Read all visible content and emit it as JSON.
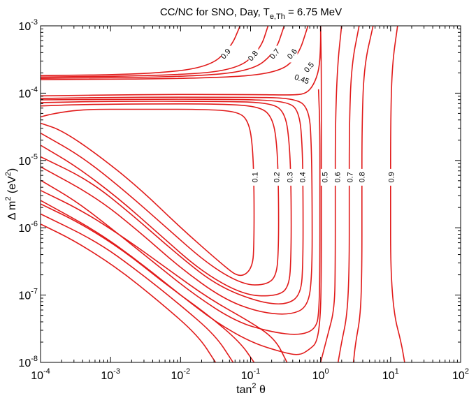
{
  "chart_data": {
    "type": "contour",
    "title": "CC/NC for SNO, Day, T_e,Th = 6.75 MeV",
    "title_parts": {
      "pre": "CC/NC for SNO, Day, T",
      "sub": "e,Th",
      "post": " = 6.75 MeV"
    },
    "xlabel": {
      "base": "tan",
      "sup": "2",
      "post": " θ"
    },
    "ylabel": {
      "pre": "Δ m",
      "sup": "2",
      "mid": " (eV",
      "sup2": "2",
      "post": ")"
    },
    "x_scale": "log",
    "y_scale": "log",
    "xlim": [
      0.0001,
      100
    ],
    "ylim": [
      1e-08,
      0.001
    ],
    "x_ticks": [
      {
        "value": -4,
        "base": "10",
        "exp": "-4"
      },
      {
        "value": -3,
        "base": "10",
        "exp": "-3"
      },
      {
        "value": -2,
        "base": "10",
        "exp": "-2"
      },
      {
        "value": -1,
        "base": "10",
        "exp": "-1"
      },
      {
        "value": 0,
        "base": "10",
        "exp": "0"
      },
      {
        "value": 1,
        "base": "10",
        "exp": "1"
      },
      {
        "value": 2,
        "base": "10",
        "exp": "2"
      }
    ],
    "y_ticks": [
      {
        "value": -8,
        "base": "10",
        "exp": "-8"
      },
      {
        "value": -7,
        "base": "10",
        "exp": "-7"
      },
      {
        "value": -6,
        "base": "10",
        "exp": "-6"
      },
      {
        "value": -5,
        "base": "10",
        "exp": "-5"
      },
      {
        "value": -4,
        "base": "10",
        "exp": "-4"
      },
      {
        "value": -3,
        "base": "10",
        "exp": "-3"
      }
    ],
    "contour_color": "#e11a1a",
    "contours": [
      {
        "label": "0.1",
        "label_at": [
          -0.93,
          -5.25
        ],
        "points": [
          [
            -3.99,
            -4.35
          ],
          [
            -3.8,
            -4.3
          ],
          [
            -3.4,
            -4.24
          ],
          [
            -2.6,
            -4.24
          ],
          [
            -1.6,
            -4.24
          ],
          [
            -1.15,
            -4.28
          ],
          [
            -1.02,
            -4.45
          ],
          [
            -0.97,
            -4.8
          ],
          [
            -0.95,
            -5.4
          ],
          [
            -0.95,
            -6.2
          ],
          [
            -0.97,
            -6.6
          ],
          [
            -1.15,
            -6.75
          ],
          [
            -1.4,
            -6.55
          ],
          [
            -2.0,
            -6.0
          ],
          [
            -2.6,
            -5.4
          ],
          [
            -3.2,
            -4.9
          ],
          [
            -3.7,
            -4.55
          ],
          [
            -3.99,
            -4.45
          ]
        ]
      },
      {
        "label": "0.2",
        "label_at": [
          -0.62,
          -5.25
        ],
        "points": [
          [
            -3.99,
            -4.19
          ],
          [
            -3.5,
            -4.17
          ],
          [
            -2.5,
            -4.16
          ],
          [
            -1.4,
            -4.16
          ],
          [
            -0.85,
            -4.2
          ],
          [
            -0.68,
            -4.38
          ],
          [
            -0.62,
            -4.8
          ],
          [
            -0.6,
            -5.5
          ],
          [
            -0.6,
            -6.3
          ],
          [
            -0.63,
            -6.72
          ],
          [
            -0.78,
            -6.85
          ],
          [
            -1.1,
            -6.85
          ],
          [
            -1.6,
            -6.55
          ],
          [
            -2.2,
            -6.0
          ],
          [
            -2.8,
            -5.45
          ],
          [
            -3.4,
            -4.95
          ],
          [
            -3.99,
            -4.6
          ]
        ]
      },
      {
        "label": "0.3",
        "label_at": [
          -0.43,
          -5.25
        ],
        "points": [
          [
            -3.99,
            -4.14
          ],
          [
            -3.0,
            -4.12
          ],
          [
            -1.5,
            -4.12
          ],
          [
            -0.7,
            -4.14
          ],
          [
            -0.5,
            -4.3
          ],
          [
            -0.44,
            -4.8
          ],
          [
            -0.42,
            -5.5
          ],
          [
            -0.42,
            -6.4
          ],
          [
            -0.45,
            -6.9
          ],
          [
            -0.65,
            -7.02
          ],
          [
            -1.1,
            -7.0
          ],
          [
            -1.7,
            -6.65
          ],
          [
            -2.3,
            -6.1
          ],
          [
            -2.9,
            -5.55
          ],
          [
            -3.5,
            -5.08
          ],
          [
            -3.99,
            -4.78
          ]
        ]
      },
      {
        "label": "0.4",
        "label_at": [
          -0.25,
          -5.25
        ],
        "points": [
          [
            -3.99,
            -4.1
          ],
          [
            -2.8,
            -4.09
          ],
          [
            -1.2,
            -4.09
          ],
          [
            -0.45,
            -4.12
          ],
          [
            -0.3,
            -4.3
          ],
          [
            -0.26,
            -4.8
          ],
          [
            -0.25,
            -5.5
          ],
          [
            -0.25,
            -6.5
          ],
          [
            -0.28,
            -7.0
          ],
          [
            -0.5,
            -7.15
          ],
          [
            -0.9,
            -7.1
          ],
          [
            -1.5,
            -6.85
          ],
          [
            -2.1,
            -6.35
          ],
          [
            -2.7,
            -5.8
          ],
          [
            -3.3,
            -5.3
          ],
          [
            -3.99,
            -4.95
          ]
        ]
      },
      {
        "label": "0.45",
        "label_at": [
          -0.27,
          -3.8
        ],
        "points": [
          [
            -3.99,
            -4.08
          ],
          [
            -2.8,
            -4.06
          ],
          [
            -1.2,
            -4.06
          ],
          [
            -0.35,
            -4.07
          ],
          [
            -0.16,
            -4.25
          ],
          [
            -0.13,
            -4.8
          ],
          [
            -0.12,
            -5.6
          ],
          [
            -0.12,
            -6.7
          ],
          [
            -0.18,
            -7.18
          ],
          [
            -0.45,
            -7.3
          ],
          [
            -0.9,
            -7.25
          ],
          [
            -1.4,
            -7.05
          ],
          [
            -2.0,
            -6.6
          ],
          [
            -2.6,
            -6.05
          ],
          [
            -3.2,
            -5.55
          ],
          [
            -3.99,
            -5.1
          ]
        ]
      },
      {
        "label": "",
        "label_at": null,
        "points": [
          [
            -3.99,
            -4.04
          ],
          [
            -2.5,
            -4.02
          ],
          [
            -1.0,
            -4.02
          ],
          [
            -0.35,
            -4.03
          ],
          [
            -0.2,
            -4.0
          ],
          [
            -0.1,
            -3.88
          ],
          [
            -0.02,
            -3.65
          ],
          [
            0.0,
            -3.3
          ],
          [
            0.0,
            -3.0
          ]
        ]
      },
      {
        "label": "",
        "label_at": null,
        "points": [
          [
            -0.03,
            -3.95
          ],
          [
            -0.01,
            -4.5
          ],
          [
            -0.01,
            -5.5
          ],
          [
            -0.01,
            -6.5
          ],
          [
            -0.02,
            -7.2
          ],
          [
            -0.06,
            -7.5
          ],
          [
            -0.3,
            -7.6
          ],
          [
            -0.7,
            -7.55
          ],
          [
            -1.2,
            -7.4
          ],
          [
            -1.8,
            -7.0
          ],
          [
            -2.4,
            -6.5
          ],
          [
            -3.0,
            -6.0
          ],
          [
            -3.5,
            -5.6
          ],
          [
            -3.99,
            -5.3
          ]
        ]
      },
      {
        "label": "0.5",
        "label_at": [
          0.07,
          -5.25
        ],
        "points": [
          [
            0.0,
            -3.0
          ],
          [
            0.01,
            -3.6
          ],
          [
            0.01,
            -4.5
          ],
          [
            0.01,
            -5.6
          ],
          [
            0.01,
            -6.6
          ],
          [
            0.0,
            -7.3
          ],
          [
            -0.05,
            -7.7
          ],
          [
            -0.15,
            -7.8
          ],
          [
            -0.3,
            -7.9
          ],
          [
            -0.55,
            -7.85
          ],
          [
            -1.0,
            -7.7
          ],
          [
            -1.5,
            -7.4
          ],
          [
            -2.0,
            -7.0
          ],
          [
            -2.6,
            -6.5
          ],
          [
            -3.2,
            -6.05
          ],
          [
            -3.99,
            -5.6
          ]
        ]
      },
      {
        "label": "0.6",
        "label_at": [
          0.25,
          -5.25
        ],
        "points": [
          [
            -0.18,
            -3.0
          ],
          [
            -0.32,
            -3.45
          ],
          [
            -0.6,
            -3.7
          ],
          [
            -1.5,
            -3.78
          ],
          [
            -3.99,
            -3.8
          ]
        ]
      },
      {
        "label": "",
        "label_at": null,
        "points": [
          [
            0.3,
            -3.0
          ],
          [
            0.24,
            -3.6
          ],
          [
            0.21,
            -4.5
          ],
          [
            0.21,
            -5.5
          ],
          [
            0.21,
            -6.5
          ],
          [
            0.2,
            -7.2
          ],
          [
            0.1,
            -7.6
          ],
          [
            0.0,
            -8.0
          ]
        ]
      },
      {
        "label": "",
        "label_at": null,
        "points": [
          [
            -0.48,
            -8.0
          ],
          [
            -0.65,
            -7.65
          ],
          [
            -1.0,
            -7.4
          ],
          [
            -1.6,
            -7.05
          ],
          [
            -2.2,
            -6.6
          ],
          [
            -2.8,
            -6.15
          ],
          [
            -3.4,
            -5.75
          ],
          [
            -3.99,
            -5.45
          ]
        ]
      },
      {
        "label": "0.7",
        "label_at": [
          0.43,
          -5.25
        ],
        "points": [
          [
            0.55,
            -3.0
          ],
          [
            0.44,
            -3.6
          ],
          [
            0.41,
            -4.5
          ],
          [
            0.41,
            -5.6
          ],
          [
            0.41,
            -6.6
          ],
          [
            0.38,
            -7.3
          ],
          [
            0.3,
            -7.7
          ],
          [
            0.25,
            -8.0
          ]
        ]
      },
      {
        "label": "",
        "label_at": null,
        "points": [
          [
            -0.52,
            -3.0
          ],
          [
            -0.65,
            -3.4
          ],
          [
            -1.0,
            -3.68
          ],
          [
            -2.0,
            -3.76
          ],
          [
            -3.99,
            -3.78
          ]
        ]
      },
      {
        "label": "",
        "label_at": null,
        "points": [
          [
            -0.95,
            -8.0
          ],
          [
            -1.15,
            -7.7
          ],
          [
            -1.6,
            -7.3
          ],
          [
            -2.2,
            -6.85
          ],
          [
            -2.8,
            -6.35
          ],
          [
            -3.4,
            -5.95
          ],
          [
            -3.99,
            -5.65
          ]
        ]
      },
      {
        "label": "0.8",
        "label_at": [
          0.6,
          -5.25
        ],
        "points": [
          [
            0.75,
            -3.0
          ],
          [
            0.62,
            -3.6
          ],
          [
            0.59,
            -4.5
          ],
          [
            0.59,
            -5.6
          ],
          [
            0.59,
            -6.6
          ],
          [
            0.57,
            -7.3
          ],
          [
            0.5,
            -7.7
          ],
          [
            0.47,
            -8.0
          ]
        ]
      },
      {
        "label": "",
        "label_at": null,
        "points": [
          [
            -0.75,
            -3.0
          ],
          [
            -0.86,
            -3.35
          ],
          [
            -1.2,
            -3.66
          ],
          [
            -2.2,
            -3.74
          ],
          [
            -3.99,
            -3.76
          ]
        ]
      },
      {
        "label": "",
        "label_at": null,
        "points": [
          [
            -1.25,
            -8.0
          ],
          [
            -1.5,
            -7.6
          ],
          [
            -2.0,
            -7.15
          ],
          [
            -2.6,
            -6.65
          ],
          [
            -3.2,
            -6.2
          ],
          [
            -3.99,
            -5.8
          ]
        ]
      },
      {
        "label": "0.9",
        "label_at": [
          1.02,
          -5.25
        ],
        "points": [
          [
            1.1,
            -3.0
          ],
          [
            1.02,
            -3.6
          ],
          [
            1.0,
            -4.5
          ],
          [
            1.0,
            -5.6
          ],
          [
            1.0,
            -6.6
          ],
          [
            1.05,
            -7.3
          ],
          [
            1.15,
            -7.7
          ],
          [
            1.2,
            -8.0
          ]
        ]
      },
      {
        "label": "",
        "label_at": null,
        "points": [
          [
            -1.15,
            -3.0
          ],
          [
            -1.28,
            -3.32
          ],
          [
            -1.6,
            -3.62
          ],
          [
            -2.5,
            -3.72
          ],
          [
            -3.99,
            -3.74
          ]
        ]
      },
      {
        "label": "",
        "label_at": null,
        "points": [
          [
            -1.5,
            -8.0
          ],
          [
            -1.75,
            -7.6
          ],
          [
            -2.3,
            -7.1
          ],
          [
            -2.9,
            -6.6
          ],
          [
            -3.5,
            -6.2
          ],
          [
            -3.99,
            -5.95
          ]
        ]
      }
    ],
    "top_labels": [
      {
        "label": "0.9",
        "label_at": [
          -1.35,
          -3.42
        ]
      },
      {
        "label": "0.8",
        "label_at": [
          -0.96,
          -3.45
        ]
      },
      {
        "label": "0.7",
        "label_at": [
          -0.65,
          -3.42
        ]
      },
      {
        "label": "0.6",
        "label_at": [
          -0.4,
          -3.42
        ]
      },
      {
        "label": "0.5",
        "label_at": [
          -0.16,
          -3.62
        ]
      }
    ]
  }
}
